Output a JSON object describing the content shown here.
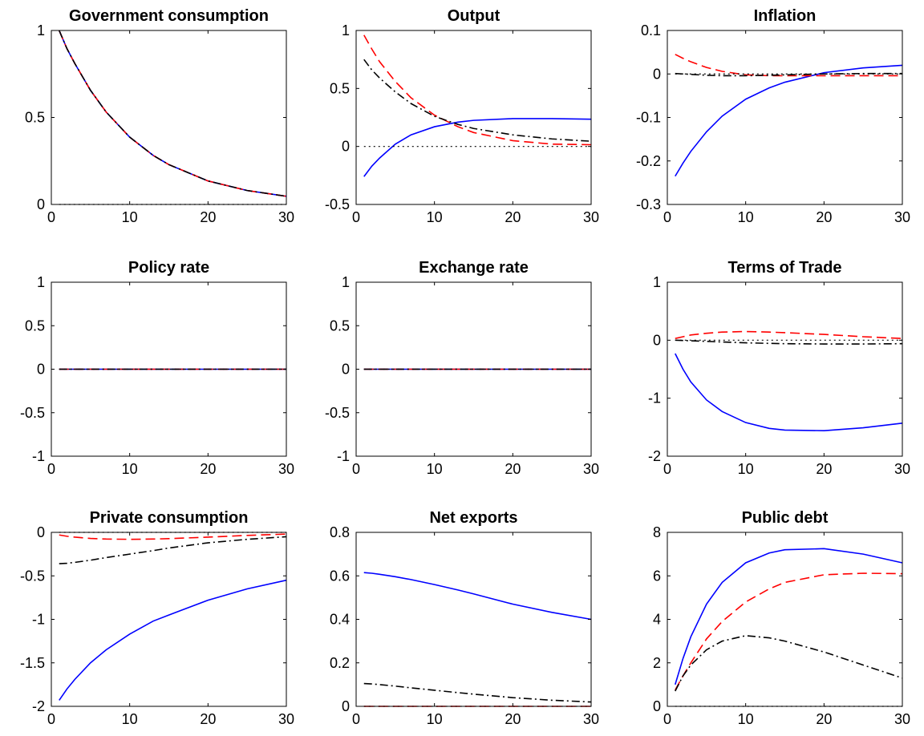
{
  "chart_data": [
    {
      "type": "line",
      "title": "Government consumption",
      "xlim": [
        0,
        30
      ],
      "ylim": [
        0,
        1
      ],
      "xticks": [
        "0",
        "10",
        "20",
        "30"
      ],
      "yticks": [
        "0",
        "0.5",
        "1"
      ],
      "x": [
        1,
        2,
        3,
        5,
        7,
        10,
        13,
        15,
        20,
        25,
        30
      ],
      "series": [
        {
          "color": "#0000ff",
          "dash": "solid",
          "values": [
            1.0,
            0.895,
            0.81,
            0.656,
            0.531,
            0.387,
            0.282,
            0.229,
            0.135,
            0.08,
            0.047
          ]
        },
        {
          "color": "#ff0000",
          "dash": "dashed",
          "values": [
            1.0,
            0.895,
            0.81,
            0.656,
            0.531,
            0.387,
            0.282,
            0.229,
            0.135,
            0.08,
            0.047
          ]
        },
        {
          "color": "#000000",
          "dash": "dashdot",
          "values": [
            1.0,
            0.895,
            0.81,
            0.656,
            0.531,
            0.387,
            0.282,
            0.229,
            0.135,
            0.08,
            0.047
          ]
        },
        {
          "color": "#000000",
          "dash": "dotted",
          "values": [
            0,
            0,
            0,
            0,
            0,
            0,
            0,
            0,
            0,
            0,
            0
          ]
        }
      ]
    },
    {
      "type": "line",
      "title": "Output",
      "xlim": [
        0,
        30
      ],
      "ylim": [
        -0.5,
        1
      ],
      "xticks": [
        "0",
        "10",
        "20",
        "30"
      ],
      "yticks": [
        "-0.5",
        "0",
        "0.5",
        "1"
      ],
      "x": [
        1,
        2,
        3,
        5,
        7,
        10,
        13,
        15,
        20,
        25,
        30
      ],
      "series": [
        {
          "color": "#0000ff",
          "dash": "solid",
          "values": [
            -0.26,
            -0.17,
            -0.1,
            0.02,
            0.1,
            0.17,
            0.21,
            0.225,
            0.24,
            0.24,
            0.235
          ]
        },
        {
          "color": "#ff0000",
          "dash": "dashed",
          "values": [
            0.96,
            0.84,
            0.73,
            0.56,
            0.42,
            0.27,
            0.17,
            0.12,
            0.05,
            0.02,
            0.015
          ]
        },
        {
          "color": "#000000",
          "dash": "dashdot",
          "values": [
            0.75,
            0.66,
            0.59,
            0.47,
            0.37,
            0.26,
            0.19,
            0.155,
            0.1,
            0.065,
            0.045
          ]
        },
        {
          "color": "#000000",
          "dash": "dotted",
          "values": [
            0,
            0,
            0,
            0,
            0,
            0,
            0,
            0,
            0,
            0,
            0
          ]
        }
      ]
    },
    {
      "type": "line",
      "title": "Inflation",
      "xlim": [
        0,
        30
      ],
      "ylim": [
        -0.3,
        0.1
      ],
      "xticks": [
        "0",
        "10",
        "20",
        "30"
      ],
      "yticks": [
        "-0.3",
        "-0.2",
        "-0.1",
        "0",
        "0.1"
      ],
      "x": [
        1,
        2,
        3,
        5,
        7,
        10,
        13,
        15,
        20,
        25,
        30
      ],
      "series": [
        {
          "color": "#0000ff",
          "dash": "solid",
          "values": [
            -0.235,
            -0.205,
            -0.178,
            -0.133,
            -0.097,
            -0.058,
            -0.032,
            -0.019,
            0.003,
            0.014,
            0.02
          ]
        },
        {
          "color": "#ff0000",
          "dash": "dashed",
          "values": [
            0.045,
            0.036,
            0.028,
            0.015,
            0.006,
            -0.002,
            -0.004,
            -0.004,
            -0.004,
            -0.004,
            -0.004
          ]
        },
        {
          "color": "#000000",
          "dash": "dashdot",
          "values": [
            0.001,
            0.0,
            -0.001,
            -0.003,
            -0.004,
            -0.004,
            -0.003,
            -0.002,
            0.0,
            0.001,
            0.001
          ]
        },
        {
          "color": "#000000",
          "dash": "dotted",
          "values": [
            0,
            0,
            0,
            0,
            0,
            0,
            0,
            0,
            0,
            0,
            0
          ]
        }
      ]
    },
    {
      "type": "line",
      "title": "Policy rate",
      "xlim": [
        0,
        30
      ],
      "ylim": [
        -1,
        1
      ],
      "xticks": [
        "0",
        "10",
        "20",
        "30"
      ],
      "yticks": [
        "-1",
        "-0.5",
        "0",
        "0.5",
        "1"
      ],
      "x": [
        1,
        30
      ],
      "series": [
        {
          "color": "#0000ff",
          "dash": "solid",
          "values": [
            0,
            0
          ]
        },
        {
          "color": "#ff0000",
          "dash": "dashed",
          "values": [
            0,
            0
          ]
        },
        {
          "color": "#000000",
          "dash": "dashdot",
          "values": [
            0,
            0
          ]
        },
        {
          "color": "#000000",
          "dash": "dotted",
          "values": [
            0,
            0
          ]
        }
      ]
    },
    {
      "type": "line",
      "title": "Exchange rate",
      "xlim": [
        0,
        30
      ],
      "ylim": [
        -1,
        1
      ],
      "xticks": [
        "0",
        "10",
        "20",
        "30"
      ],
      "yticks": [
        "-1",
        "-0.5",
        "0",
        "0.5",
        "1"
      ],
      "x": [
        1,
        30
      ],
      "series": [
        {
          "color": "#0000ff",
          "dash": "solid",
          "values": [
            0,
            0
          ]
        },
        {
          "color": "#ff0000",
          "dash": "dashed",
          "values": [
            0,
            0
          ]
        },
        {
          "color": "#000000",
          "dash": "dashdot",
          "values": [
            0,
            0
          ]
        },
        {
          "color": "#000000",
          "dash": "dotted",
          "values": [
            0,
            0
          ]
        }
      ]
    },
    {
      "type": "line",
      "title": "Terms of Trade",
      "xlim": [
        0,
        30
      ],
      "ylim": [
        -2,
        1
      ],
      "xticks": [
        "0",
        "10",
        "20",
        "30"
      ],
      "yticks": [
        "-2",
        "-1",
        "0",
        "1"
      ],
      "x": [
        1,
        2,
        3,
        5,
        7,
        10,
        13,
        15,
        20,
        25,
        30
      ],
      "series": [
        {
          "color": "#0000ff",
          "dash": "solid",
          "values": [
            -0.23,
            -0.5,
            -0.72,
            -1.03,
            -1.23,
            -1.42,
            -1.52,
            -1.55,
            -1.56,
            -1.51,
            -1.43
          ]
        },
        {
          "color": "#ff0000",
          "dash": "dashed",
          "values": [
            0.03,
            0.06,
            0.09,
            0.12,
            0.14,
            0.15,
            0.14,
            0.13,
            0.1,
            0.06,
            0.03
          ]
        },
        {
          "color": "#000000",
          "dash": "dashdot",
          "values": [
            0.0,
            -0.005,
            -0.01,
            -0.02,
            -0.03,
            -0.045,
            -0.055,
            -0.06,
            -0.065,
            -0.065,
            -0.06
          ]
        },
        {
          "color": "#000000",
          "dash": "dotted",
          "values": [
            0,
            0,
            0,
            0,
            0,
            0,
            0,
            0,
            0,
            0,
            0
          ]
        }
      ]
    },
    {
      "type": "line",
      "title": "Private consumption",
      "xlim": [
        0,
        30
      ],
      "ylim": [
        -2,
        0
      ],
      "xticks": [
        "0",
        "10",
        "20",
        "30"
      ],
      "yticks": [
        "-2",
        "-1.5",
        "-1",
        "-0.5",
        "0"
      ],
      "x": [
        1,
        2,
        3,
        5,
        7,
        10,
        13,
        15,
        20,
        25,
        30
      ],
      "series": [
        {
          "color": "#0000ff",
          "dash": "solid",
          "values": [
            -1.93,
            -1.8,
            -1.69,
            -1.5,
            -1.35,
            -1.17,
            -1.02,
            -0.95,
            -0.78,
            -0.65,
            -0.55
          ]
        },
        {
          "color": "#ff0000",
          "dash": "dashed",
          "values": [
            -0.03,
            -0.045,
            -0.055,
            -0.07,
            -0.077,
            -0.08,
            -0.077,
            -0.072,
            -0.055,
            -0.035,
            -0.02
          ]
        },
        {
          "color": "#000000",
          "dash": "dashdot",
          "values": [
            -0.36,
            -0.355,
            -0.345,
            -0.32,
            -0.29,
            -0.25,
            -0.21,
            -0.18,
            -0.12,
            -0.08,
            -0.05
          ]
        },
        {
          "color": "#000000",
          "dash": "dotted",
          "values": [
            0,
            0,
            0,
            0,
            0,
            0,
            0,
            0,
            0,
            0,
            0
          ]
        }
      ]
    },
    {
      "type": "line",
      "title": "Net exports",
      "xlim": [
        0,
        30
      ],
      "ylim": [
        0,
        0.8
      ],
      "xticks": [
        "0",
        "10",
        "20",
        "30"
      ],
      "yticks": [
        "0",
        "0.2",
        "0.4",
        "0.6",
        "0.8"
      ],
      "x": [
        1,
        2,
        3,
        5,
        7,
        10,
        13,
        15,
        20,
        25,
        30
      ],
      "series": [
        {
          "color": "#0000ff",
          "dash": "solid",
          "values": [
            0.615,
            0.612,
            0.607,
            0.596,
            0.583,
            0.56,
            0.535,
            0.517,
            0.47,
            0.432,
            0.4
          ]
        },
        {
          "color": "#ff0000",
          "dash": "dashed",
          "values": [
            0,
            0,
            0,
            0,
            0,
            0,
            0,
            0,
            0,
            0,
            0
          ]
        },
        {
          "color": "#000000",
          "dash": "dashdot",
          "values": [
            0.105,
            0.103,
            0.1,
            0.093,
            0.085,
            0.074,
            0.063,
            0.056,
            0.04,
            0.028,
            0.02
          ]
        },
        {
          "color": "#000000",
          "dash": "dotted",
          "values": [
            0,
            0,
            0,
            0,
            0,
            0,
            0,
            0,
            0,
            0,
            0
          ]
        }
      ]
    },
    {
      "type": "line",
      "title": "Public debt",
      "xlim": [
        0,
        30
      ],
      "ylim": [
        0,
        8
      ],
      "xticks": [
        "0",
        "10",
        "20",
        "30"
      ],
      "yticks": [
        "0",
        "2",
        "4",
        "6",
        "8"
      ],
      "x": [
        1,
        2,
        3,
        5,
        7,
        10,
        13,
        15,
        20,
        25,
        30
      ],
      "series": [
        {
          "color": "#0000ff",
          "dash": "solid",
          "values": [
            1.0,
            2.2,
            3.2,
            4.7,
            5.7,
            6.6,
            7.05,
            7.2,
            7.25,
            7.0,
            6.6
          ]
        },
        {
          "color": "#ff0000",
          "dash": "dashed",
          "values": [
            0.75,
            1.4,
            2.0,
            3.1,
            3.9,
            4.8,
            5.4,
            5.7,
            6.05,
            6.12,
            6.1
          ]
        },
        {
          "color": "#000000",
          "dash": "dashdot",
          "values": [
            0.7,
            1.4,
            1.9,
            2.6,
            3.0,
            3.25,
            3.15,
            3.0,
            2.5,
            1.9,
            1.3
          ]
        },
        {
          "color": "#000000",
          "dash": "dotted",
          "values": [
            0,
            0,
            0,
            0,
            0,
            0,
            0,
            0,
            0,
            0,
            0
          ]
        }
      ]
    }
  ]
}
